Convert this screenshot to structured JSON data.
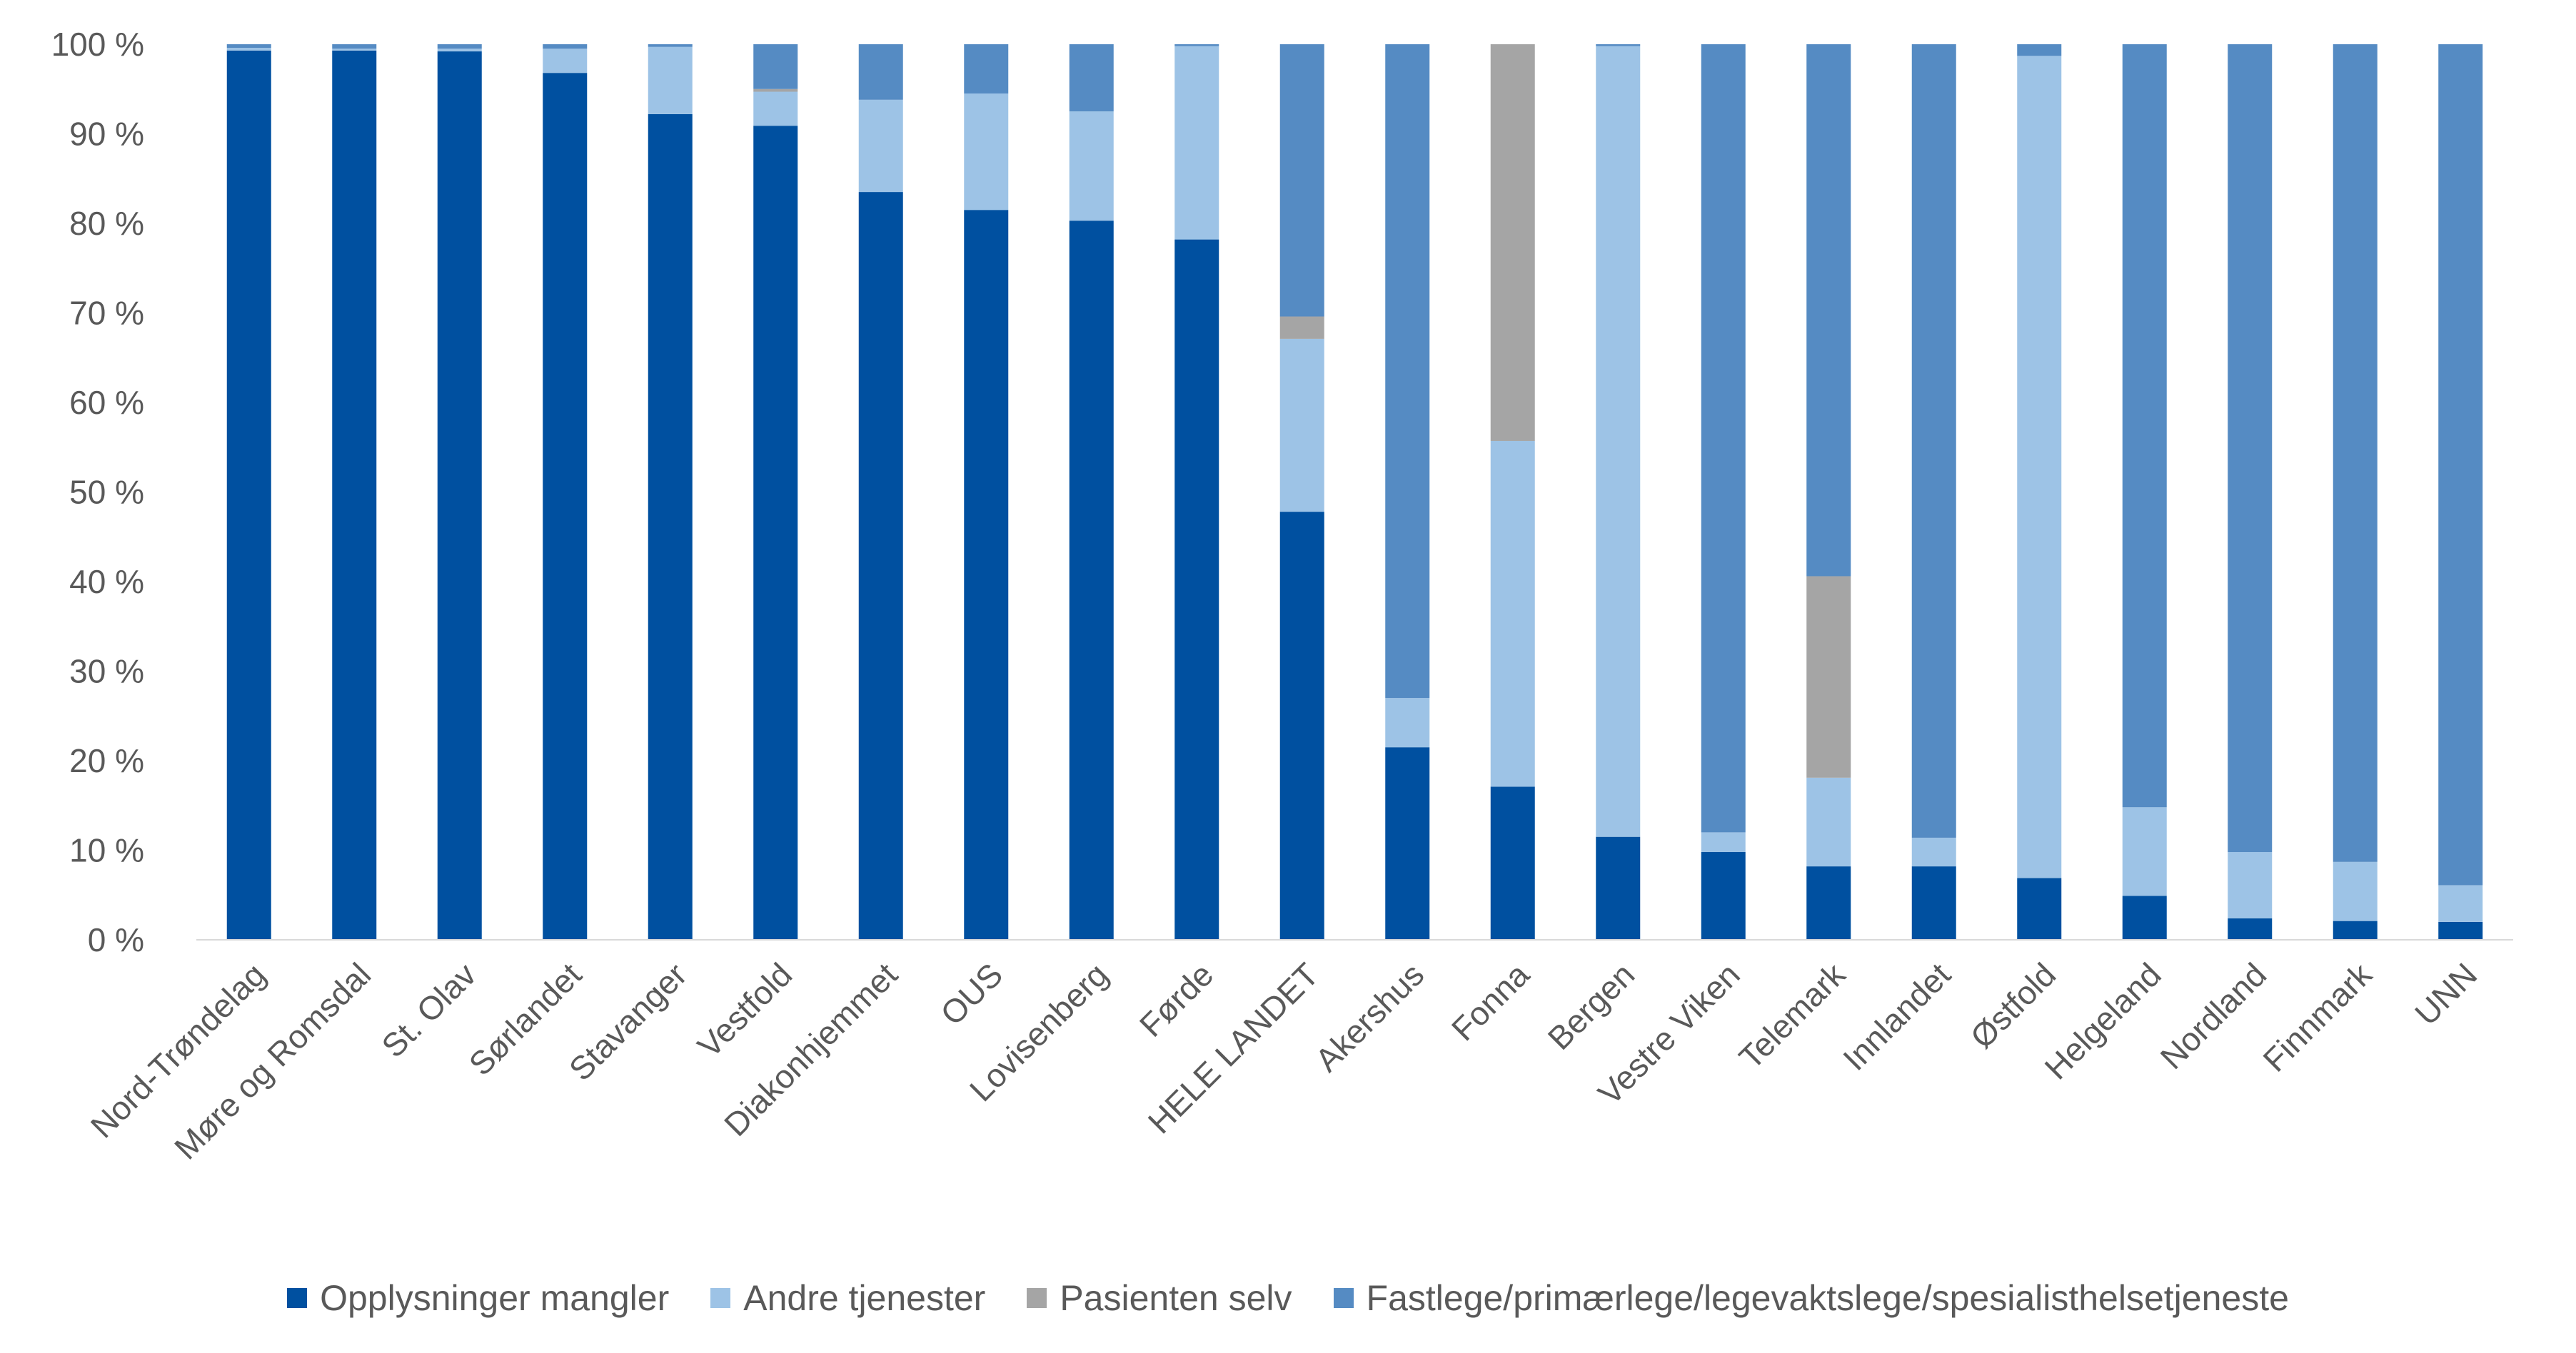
{
  "chart_data": {
    "type": "bar",
    "stacked": true,
    "ylim": [
      0,
      100
    ],
    "y_ticks": [
      "0 %",
      "10 %",
      "20 %",
      "30 %",
      "40 %",
      "50 %",
      "60 %",
      "70 %",
      "80 %",
      "90 %",
      "100 %"
    ],
    "grid": false,
    "legend_position": "bottom",
    "categories": [
      "Nord-Trøndelag",
      "Møre og Romsdal",
      "St. Olav",
      "Sørlandet",
      "Stavanger",
      "Vestfold",
      "Diakonhjemmet",
      "OUS",
      "Lovisenberg",
      "Førde",
      "HELE LANDET",
      "Akershus",
      "Fonna",
      "Bergen",
      "Vestre Viken",
      "Telemark",
      "Innlandet",
      "Østfold",
      "Helgeland",
      "Nordland",
      "Finnmark",
      "UNN"
    ],
    "series": [
      {
        "name": "Opplysninger mangler",
        "color": "#0050A0",
        "values": [
          99.3,
          99.3,
          99.2,
          96.8,
          92.2,
          90.9,
          83.5,
          81.5,
          80.3,
          78.2,
          47.8,
          21.5,
          17.1,
          11.5,
          9.8,
          8.2,
          8.2,
          6.9,
          4.9,
          2.4,
          2.1,
          2.0
        ]
      },
      {
        "name": "Andre tjenester",
        "color": "#9DC3E6",
        "values": [
          0.3,
          0.2,
          0.3,
          2.7,
          7.5,
          3.8,
          10.3,
          13.0,
          12.2,
          21.6,
          19.3,
          5.5,
          38.6,
          88.3,
          2.2,
          9.9,
          3.2,
          91.8,
          9.9,
          7.4,
          6.6,
          4.1
        ]
      },
      {
        "name": "Pasienten selv",
        "color": "#A5A5A5",
        "values": [
          0.0,
          0.0,
          0.0,
          0.0,
          0.0,
          0.3,
          0.0,
          0.0,
          0.0,
          0.0,
          2.5,
          0.0,
          44.3,
          0.0,
          0.0,
          22.5,
          0.0,
          0.0,
          0.0,
          0.0,
          0.0,
          0.0
        ]
      },
      {
        "name": "Fastlege/primærlege/legevaktslege/spesialisthelsetjeneste",
        "color": "#558BC3",
        "values": [
          0.4,
          0.5,
          0.5,
          0.5,
          0.3,
          5.0,
          6.2,
          5.5,
          7.5,
          0.2,
          30.4,
          73.0,
          0.0,
          0.2,
          88.0,
          59.4,
          88.6,
          1.3,
          85.2,
          90.2,
          91.3,
          93.9
        ]
      }
    ]
  }
}
